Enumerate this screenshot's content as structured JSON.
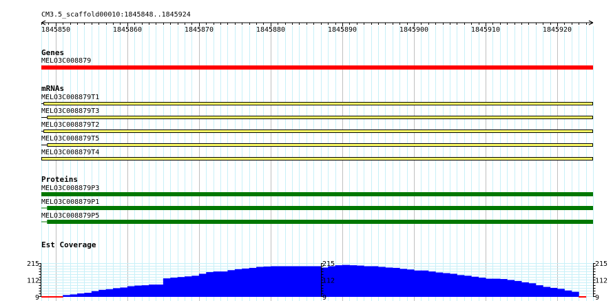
{
  "ruler": {
    "landmark": "CM3.5_scaffold00010:1845848..1845924",
    "start": 1845848,
    "end": 1845924,
    "tick_labels": [
      "1845850",
      "1845860",
      "1845870",
      "1845880",
      "1845890",
      "1845900",
      "1845910",
      "1845920"
    ]
  },
  "tracks": {
    "genes": {
      "title": "Genes",
      "features": [
        {
          "name": "MELO3C008879",
          "color": "#ff0000"
        }
      ]
    },
    "mrnas": {
      "title": "mRNAs",
      "features": [
        {
          "name": "MELO3C008879T1",
          "thin_until_bp": 1845848.3
        },
        {
          "name": "MELO3C008879T3",
          "thin_until_bp": 1845848.8
        },
        {
          "name": "MELO3C008879T2",
          "thin_until_bp": 1845848.3
        },
        {
          "name": "MELO3C008879T5",
          "thin_until_bp": 1845848.8
        },
        {
          "name": "MELO3C008879T4",
          "thin_until_bp": 1845848
        }
      ],
      "fill_color": "#ffff66",
      "stroke_color": "#000000"
    },
    "proteins": {
      "title": "Proteins",
      "color": "#007700",
      "features": [
        {
          "name": "MELO3C008879P3",
          "thin_until_bp": 1845848
        },
        {
          "name": "MELO3C008879P1",
          "thin_until_bp": 1845848.8
        },
        {
          "name": "MELO3C008879P5",
          "thin_until_bp": 1845848.8
        }
      ]
    },
    "coverage": {
      "title": "Est Coverage",
      "axis_labels": [
        "215",
        "112",
        "9"
      ],
      "ymin": 9,
      "ymax": 215,
      "fill_color": "#0000ff",
      "low_color": "#ff0000"
    }
  },
  "chart_data": {
    "type": "bar",
    "title": "Est Coverage",
    "x": [
      1845848,
      1845849,
      1845850,
      1845851,
      1845852,
      1845853,
      1845854,
      1845855,
      1845856,
      1845857,
      1845858,
      1845859,
      1845860,
      1845861,
      1845862,
      1845863,
      1845864,
      1845865,
      1845866,
      1845867,
      1845868,
      1845869,
      1845870,
      1845871,
      1845872,
      1845873,
      1845874,
      1845875,
      1845876,
      1845877,
      1845878,
      1845879,
      1845880,
      1845881,
      1845882,
      1845883,
      1845884,
      1845885,
      1845886,
      1845887,
      1845888,
      1845889,
      1845890,
      1845891,
      1845892,
      1845893,
      1845894,
      1845895,
      1845896,
      1845897,
      1845898,
      1845899,
      1845900,
      1845901,
      1845902,
      1845903,
      1845904,
      1845905,
      1845906,
      1845907,
      1845908,
      1845909,
      1845910,
      1845911,
      1845912,
      1845913,
      1845914,
      1845915,
      1845916,
      1845917,
      1845918,
      1845919,
      1845920,
      1845921,
      1845922,
      1845923
    ],
    "values": [
      9,
      9,
      9,
      20,
      24,
      30,
      34,
      44,
      52,
      56,
      62,
      66,
      74,
      78,
      80,
      84,
      84,
      122,
      126,
      130,
      134,
      138,
      150,
      160,
      164,
      164,
      172,
      178,
      182,
      186,
      192,
      194,
      196,
      196,
      196,
      196,
      196,
      196,
      196,
      188,
      196,
      202,
      204,
      202,
      200,
      196,
      196,
      192,
      188,
      186,
      180,
      176,
      170,
      170,
      164,
      158,
      154,
      150,
      142,
      138,
      132,
      126,
      120,
      120,
      118,
      112,
      106,
      98,
      92,
      80,
      70,
      64,
      58,
      48,
      40,
      9
    ],
    "ylim": [
      9,
      215
    ]
  }
}
